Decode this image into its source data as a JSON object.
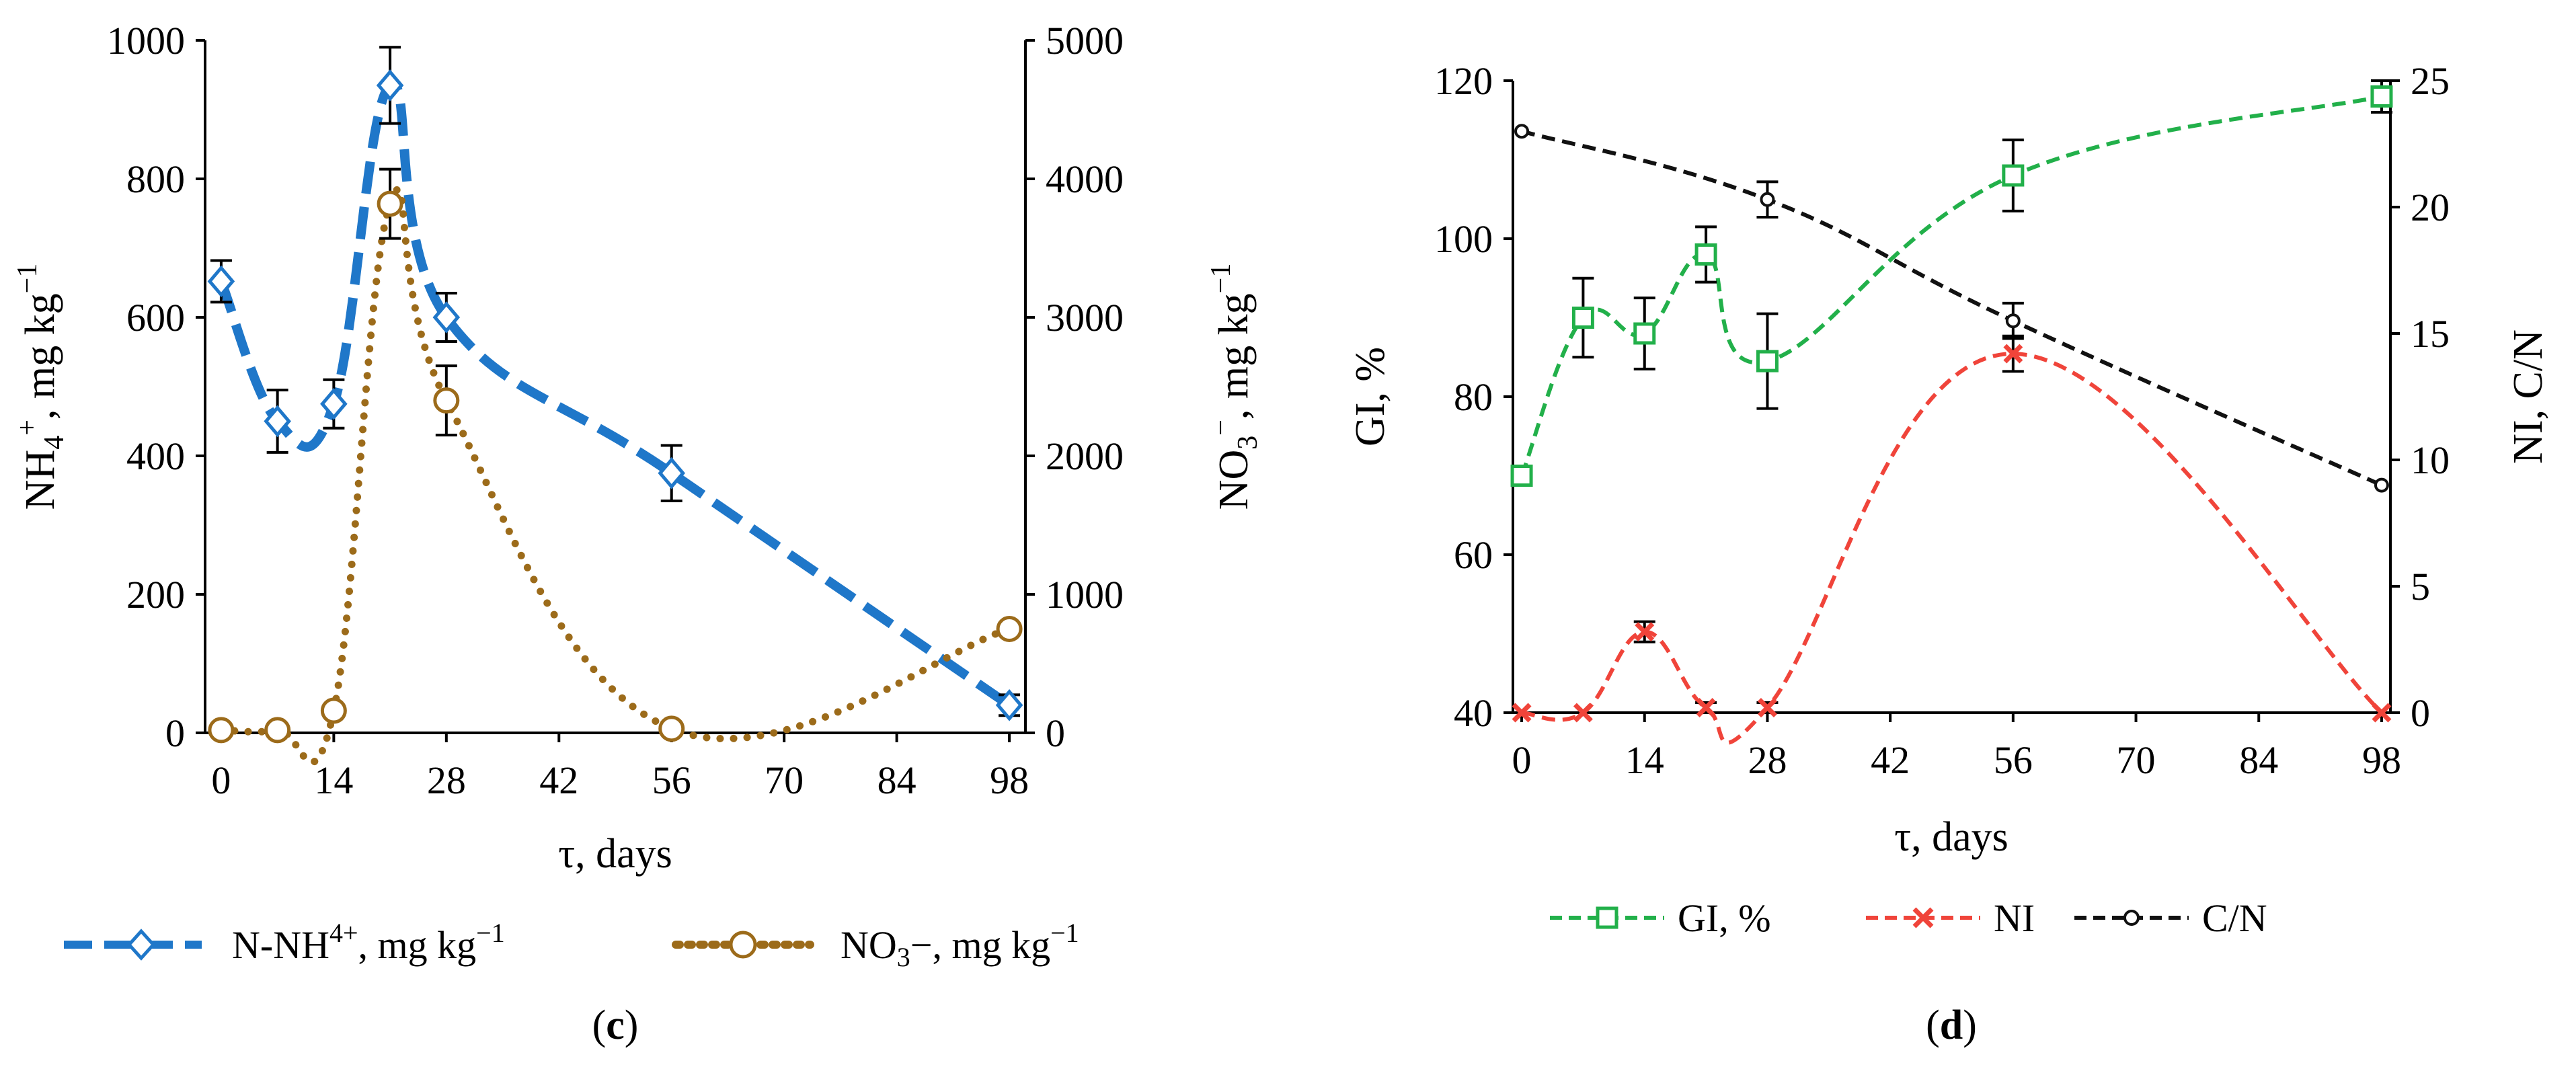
{
  "chart_data": [
    {
      "type": "line",
      "panel_label": "c",
      "xlabel": "τ, days",
      "ylabel_left": "NH4+, mg kg−1",
      "ylabel_right": "NO3−, mg kg−1",
      "x_ticks": [
        0,
        14,
        28,
        42,
        56,
        70,
        84,
        98
      ],
      "xlim": [
        -2,
        100
      ],
      "ylim_left": [
        0,
        1000
      ],
      "y_ticks_left": [
        0,
        200,
        400,
        600,
        800,
        1000
      ],
      "ylim_right": [
        0,
        5000
      ],
      "y_ticks_right": [
        0,
        1000,
        2000,
        3000,
        4000,
        5000
      ],
      "series": [
        {
          "name": "N-NH4+, mg kg−1",
          "axis": "left",
          "color": "#1f77c9",
          "marker": "diamond",
          "x": [
            0,
            7,
            14,
            21,
            28,
            56,
            98
          ],
          "values": [
            652,
            450,
            475,
            935,
            600,
            375,
            40
          ],
          "err": [
            30,
            45,
            35,
            55,
            35,
            40,
            15
          ]
        },
        {
          "name": "NO3−, mg kg−1",
          "axis": "right",
          "color": "#9c6b1a",
          "marker": "circle",
          "x": [
            0,
            7,
            14,
            21,
            28,
            56,
            98
          ],
          "values": [
            20,
            20,
            160,
            3820,
            2400,
            30,
            750
          ],
          "err": [
            0,
            0,
            0,
            250,
            250,
            0,
            0
          ]
        }
      ]
    },
    {
      "type": "line",
      "panel_label": "d",
      "xlabel": "τ, days",
      "ylabel_left": "GI, %",
      "ylabel_right": "NI, C/N",
      "x_ticks": [
        0,
        14,
        28,
        42,
        56,
        70,
        84,
        98
      ],
      "xlim": [
        -1,
        99
      ],
      "ylim_left": [
        40,
        120
      ],
      "y_ticks_left": [
        40,
        60,
        80,
        100,
        120
      ],
      "ylim_right": [
        0,
        25
      ],
      "y_ticks_right": [
        0,
        5,
        10,
        15,
        20,
        25
      ],
      "series": [
        {
          "name": "GI, %",
          "axis": "left",
          "color": "#22b04a",
          "marker": "square",
          "x": [
            0,
            7,
            14,
            21,
            28,
            56,
            98
          ],
          "values": [
            70,
            90,
            88,
            98,
            84.5,
            108,
            118
          ],
          "err": [
            0,
            5,
            4.5,
            3.5,
            6,
            4.5,
            2
          ]
        },
        {
          "name": "NI",
          "axis": "right",
          "color": "#f0443a",
          "marker": "x",
          "x": [
            0,
            7,
            14,
            21,
            28,
            56,
            98
          ],
          "values": [
            0,
            0,
            3.2,
            0.2,
            0.2,
            14.2,
            0
          ],
          "err": [
            0,
            0,
            0.4,
            0.2,
            0.2,
            0.7,
            0
          ]
        },
        {
          "name": "C/N",
          "axis": "right",
          "color": "#111111",
          "marker": "dot",
          "x": [
            0,
            28,
            56,
            98
          ],
          "values": [
            23,
            20.3,
            15.5,
            9
          ],
          "err": [
            0,
            0.7,
            0.7,
            0
          ]
        }
      ]
    }
  ]
}
